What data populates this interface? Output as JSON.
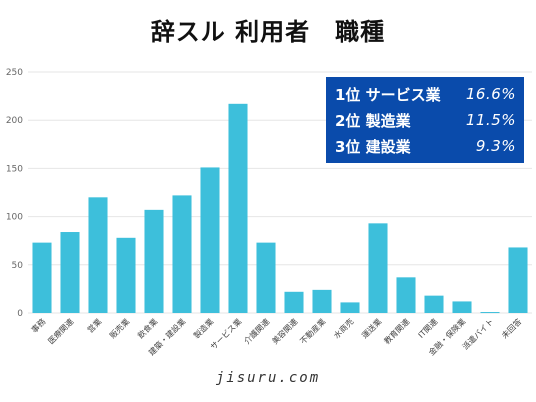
{
  "title": "辞スル 利用者　職種",
  "footer": "jisuru.com",
  "ranking": [
    {
      "rank": "1位",
      "name": "サービス業",
      "pct": "16.6%"
    },
    {
      "rank": "2位",
      "name": "製造業",
      "pct": "11.5%"
    },
    {
      "rank": "3位",
      "name": "建設業",
      "pct": "9.3%"
    }
  ],
  "colors": {
    "bar": "#3dbfdb",
    "ranking_bg": "#0a4bab",
    "grid": "#e6e6e6"
  },
  "chart_data": {
    "type": "bar",
    "title": "辞スル 利用者　職種",
    "xlabel": "",
    "ylabel": "",
    "ylim": [
      0,
      250
    ],
    "yticks": [
      0,
      50,
      100,
      150,
      200,
      250
    ],
    "grid": true,
    "categories": [
      "事務",
      "医療関連",
      "営業",
      "販売業",
      "飲食業",
      "建築・建設業",
      "製造業",
      "サービス業",
      "介護関連",
      "美容関連",
      "不動産業",
      "水商売",
      "運送業",
      "教育関連",
      "IT関連",
      "金融・保険業",
      "派遣バイト",
      "未回答"
    ],
    "values": [
      73,
      84,
      120,
      78,
      107,
      122,
      151,
      217,
      73,
      22,
      24,
      11,
      93,
      37,
      18,
      12,
      1,
      68
    ]
  }
}
